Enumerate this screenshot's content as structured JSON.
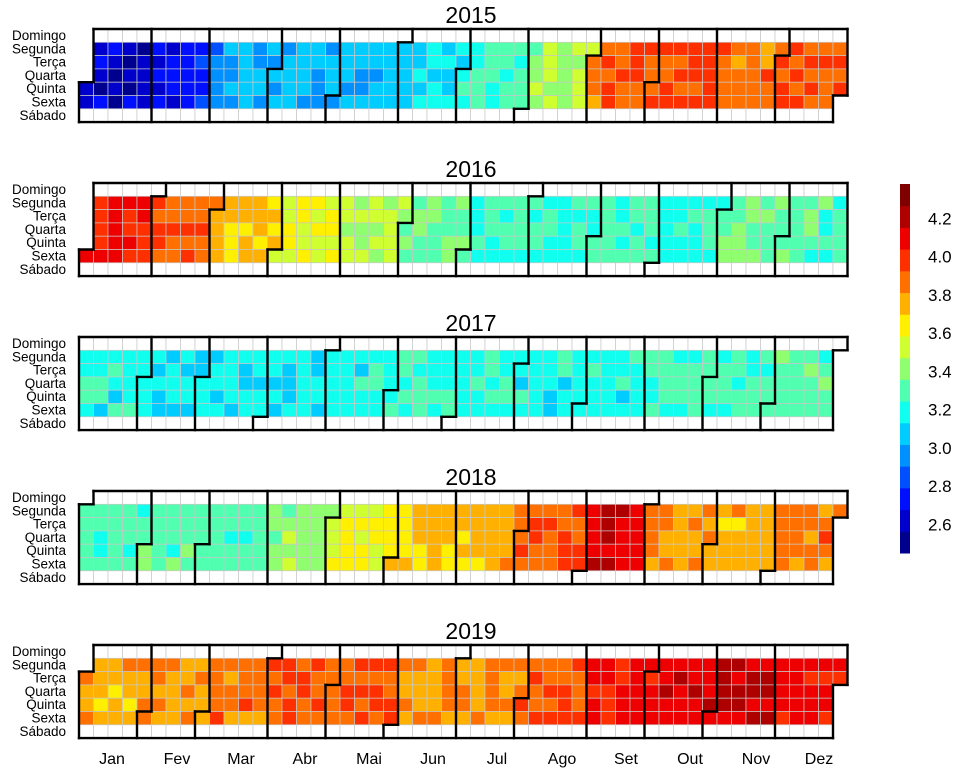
{
  "chart_data": {
    "type": "heatmap",
    "subtype": "calendar",
    "years": [
      "2015",
      "2016",
      "2017",
      "2018",
      "2019"
    ],
    "weekday_labels": [
      "Domingo",
      "Segunda",
      "Terça",
      "Quarta",
      "Quinta",
      "Sexta",
      "Sábado"
    ],
    "month_labels": [
      "Jan",
      "Fev",
      "Mar",
      "Abr",
      "Mai",
      "Jun",
      "Jul",
      "Ago",
      "Set",
      "Out",
      "Nov",
      "Dez"
    ],
    "colorbar": {
      "ticks": [
        "2.6",
        "2.8",
        "3.0",
        "3.2",
        "3.4",
        "3.6",
        "3.8",
        "4.0",
        "4.2"
      ],
      "range": [
        2.45,
        4.38
      ],
      "colors": [
        "#00008F",
        "#0000CC",
        "#0010FF",
        "#0050FF",
        "#0090FF",
        "#00CCFF",
        "#10FFEF",
        "#50FFAF",
        "#90FF6F",
        "#CFFF30",
        "#FFEF00",
        "#FFB000",
        "#FF7000",
        "#FF3000",
        "#EF0000",
        "#AF0000",
        "#800000"
      ]
    },
    "weekday_values": "Saturday and Sunday cells are not colored (no data on weekends)",
    "monthly_mean_values": [
      {
        "year": "2015",
        "values": [
          2.62,
          2.72,
          3.02,
          3.05,
          3.06,
          3.12,
          3.27,
          3.45,
          3.92,
          3.95,
          3.88,
          3.9
        ]
      },
      {
        "year": "2016",
        "values": [
          4.05,
          3.93,
          3.72,
          3.55,
          3.49,
          3.36,
          3.25,
          3.22,
          3.27,
          3.2,
          3.33,
          3.3
        ]
      },
      {
        "year": "2017",
        "values": [
          3.2,
          3.13,
          3.16,
          3.14,
          3.2,
          3.24,
          3.21,
          3.19,
          3.18,
          3.27,
          3.28,
          3.3
        ]
      },
      {
        "year": "2018",
        "values": [
          3.28,
          3.32,
          3.28,
          3.42,
          3.58,
          3.72,
          3.77,
          3.92,
          4.12,
          3.78,
          3.74,
          3.86
        ]
      },
      {
        "year": "2019",
        "values": [
          3.76,
          3.8,
          3.86,
          3.9,
          3.92,
          3.8,
          3.82,
          3.93,
          4.07,
          4.1,
          4.18,
          4.08
        ]
      }
    ]
  }
}
